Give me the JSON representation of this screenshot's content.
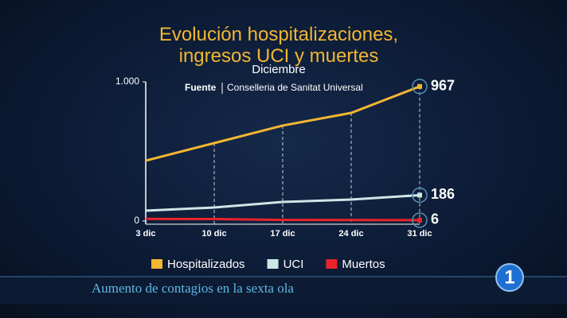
{
  "chart_data": {
    "type": "line",
    "title": "Evolución hospitalizaciones, ingresos UCI y muertes",
    "subtitle": "Diciembre",
    "source_label": "Fuente",
    "source": "Conselleria de Sanitat Universal",
    "categories": [
      "3 dic",
      "10 dic",
      "17 dic",
      "24 dic",
      "31 dic"
    ],
    "series": [
      {
        "name": "Hospitalizados",
        "color": "#f2b632",
        "values": [
          434,
          560,
          686,
          777,
          967
        ]
      },
      {
        "name": "UCI",
        "color": "#cde7e6",
        "values": [
          74,
          97,
          137,
          154,
          186
        ]
      },
      {
        "name": "Muertos",
        "color": "#e8242c",
        "values": [
          15,
          14,
          8,
          7,
          6
        ]
      }
    ],
    "ylim": [
      0,
      1000
    ],
    "yticks": [
      0,
      {
        "value": 1000,
        "label": "1.000"
      }
    ],
    "ticker": "Aumento de contagios en la sexta ola",
    "channel_logo": "1"
  }
}
